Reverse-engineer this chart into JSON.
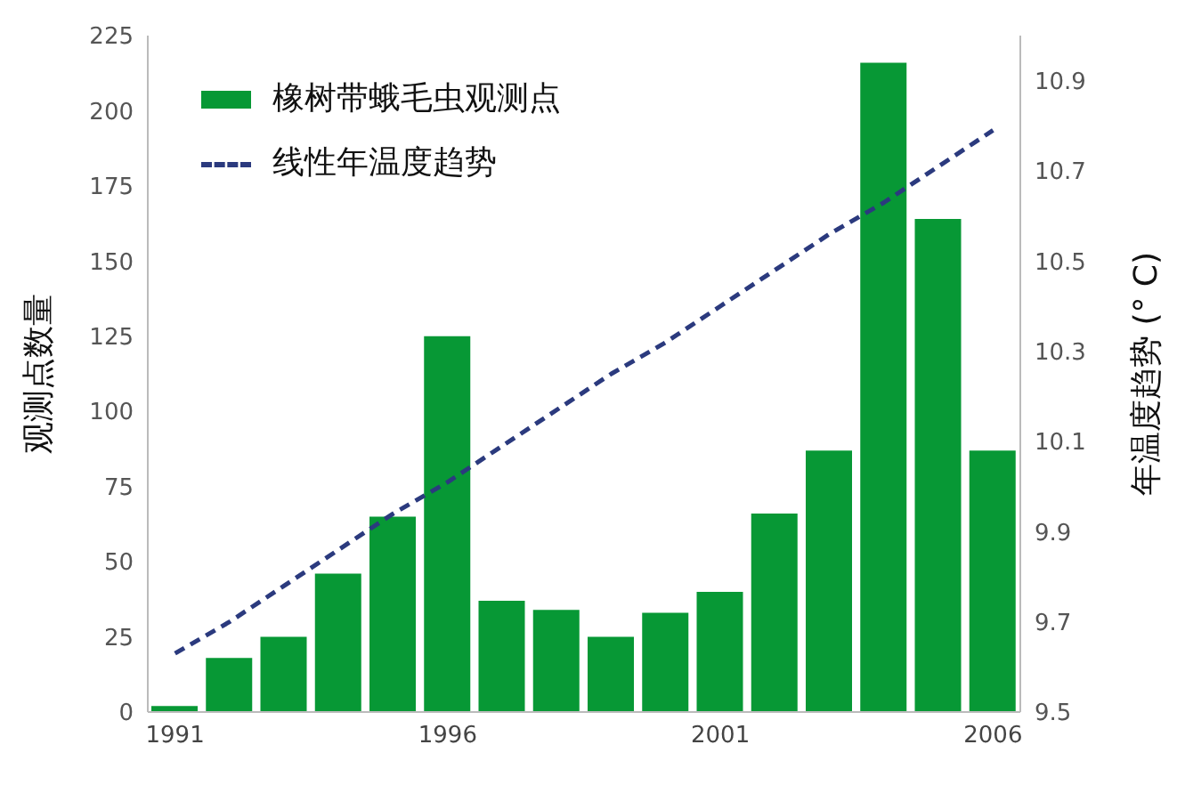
{
  "chart_data": {
    "type": "bar",
    "categories": [
      "1991",
      null,
      null,
      null,
      null,
      "1996",
      null,
      null,
      null,
      null,
      "2001",
      null,
      null,
      null,
      null,
      "2006"
    ],
    "ylabel": "观测点数量",
    "y2label": "年温度趋势 (° C)",
    "series": [
      {
        "name": "橡树带蛾毛虫观测点",
        "color": "#079835",
        "values": [
          2,
          18,
          25,
          46,
          65,
          125,
          37,
          34,
          25,
          33,
          40,
          66,
          87,
          216,
          164,
          87
        ]
      },
      {
        "name": "线性年温度趋势",
        "type": "line",
        "axis": "y2",
        "color": "#2b3a7e",
        "line_style": "dashed",
        "marker": "none",
        "values": [
          9.63,
          9.7,
          9.78,
          9.86,
          9.94,
          10.01,
          10.09,
          10.17,
          10.25,
          10.32,
          10.4,
          10.48,
          10.56,
          10.63,
          10.71,
          10.79
        ]
      }
    ],
    "ylim": [
      0,
      225
    ],
    "yticks": [
      0,
      25,
      50,
      75,
      100,
      125,
      150,
      175,
      200,
      225
    ],
    "y2lim": [
      9.5,
      11.0
    ],
    "y2ticks": [
      9.5,
      9.7,
      9.9,
      10.1,
      10.3,
      10.5,
      10.7,
      10.9
    ],
    "grid": false,
    "legend": "top left"
  }
}
